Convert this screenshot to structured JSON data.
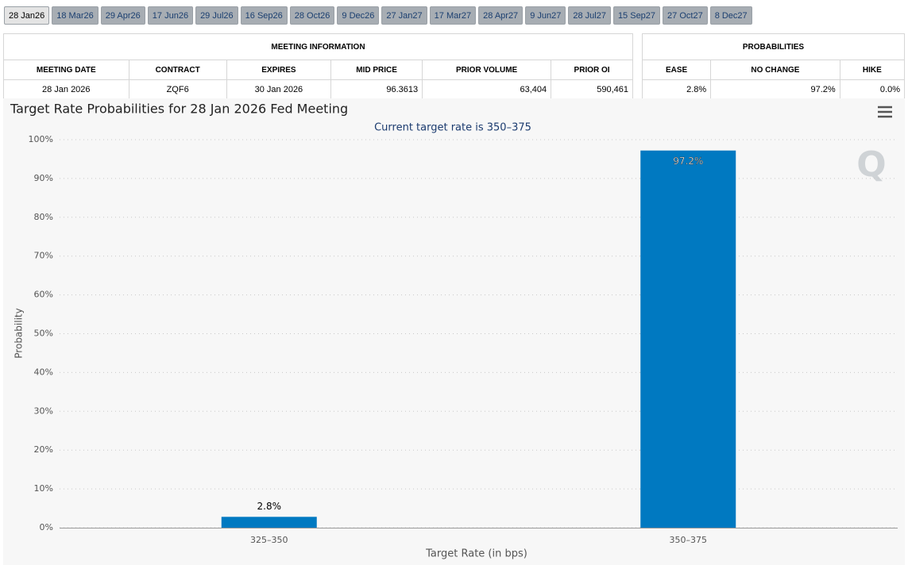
{
  "tabs": [
    "28 Jan26",
    "18 Mar26",
    "29 Apr26",
    "17 Jun26",
    "29 Jul26",
    "16 Sep26",
    "28 Oct26",
    "9 Dec26",
    "27 Jan27",
    "17 Mar27",
    "28 Apr27",
    "9 Jun27",
    "28 Jul27",
    "15 Sep27",
    "27 Oct27",
    "8 Dec27"
  ],
  "meeting_info": {
    "title": "MEETING INFORMATION",
    "headers": [
      "MEETING DATE",
      "CONTRACT",
      "EXPIRES",
      "MID PRICE",
      "PRIOR VOLUME",
      "PRIOR OI"
    ],
    "rows": [
      [
        "28 Jan 2026",
        "ZQF6",
        "30 Jan 2026",
        "96.3613",
        "63,404",
        "590,461"
      ]
    ]
  },
  "probabilities": {
    "title": "PROBABILITIES",
    "headers": [
      "EASE",
      "NO CHANGE",
      "HIKE"
    ],
    "rows": [
      [
        "2.8%",
        "97.2%",
        "0.0%"
      ]
    ]
  },
  "chart_data": {
    "type": "bar",
    "title": "Target Rate Probabilities for 28 Jan 2026 Fed Meeting",
    "subtitle": "Current target rate is 350–375",
    "x_label": "Target Rate (in bps)",
    "y_label": "Probability",
    "categories": [
      "325–350",
      "350–375"
    ],
    "values": [
      2.8,
      97.2
    ],
    "value_labels": [
      "2.8%",
      "97.2%"
    ],
    "color": "#0079c1",
    "ylim": [
      0,
      100
    ],
    "yticks": [
      {
        "value": 0,
        "label": "0%"
      },
      {
        "value": 10,
        "label": "10%"
      },
      {
        "value": 20,
        "label": "20%"
      },
      {
        "value": 30,
        "label": "30%"
      },
      {
        "value": 40,
        "label": "40%"
      },
      {
        "value": 50,
        "label": "50%"
      },
      {
        "value": 60,
        "label": "60%"
      },
      {
        "value": 70,
        "label": "70%"
      },
      {
        "value": 80,
        "label": "80%"
      },
      {
        "value": 90,
        "label": "90%"
      },
      {
        "value": 100,
        "label": "100%"
      }
    ],
    "grid": true
  }
}
